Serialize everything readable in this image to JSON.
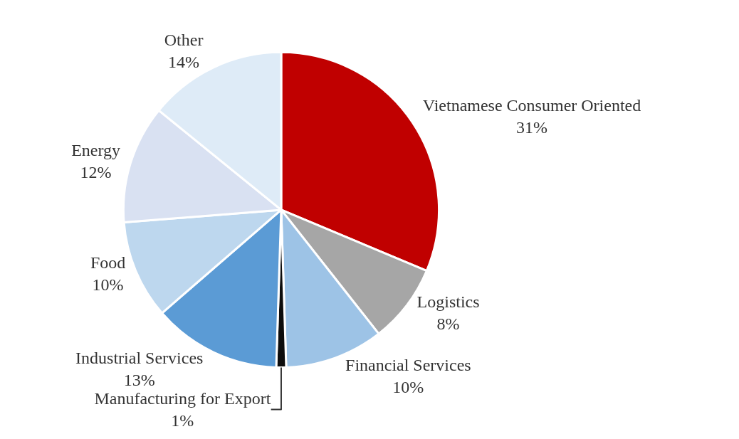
{
  "chart_data": {
    "type": "pie",
    "categories": [
      "Vietnamese Consumer Oriented",
      "Logistics",
      "Financial Services",
      "Manufacturing for Export",
      "Industrial Services",
      "Food",
      "Energy",
      "Other"
    ],
    "values": [
      31,
      8,
      10,
      1,
      13,
      10,
      12,
      14
    ],
    "value_labels": [
      "31%",
      "8%",
      "10%",
      "1%",
      "13%",
      "10%",
      "12%",
      "14%"
    ],
    "colors": [
      "#c00000",
      "#a6a6a6",
      "#9dc3e6",
      "#0d0d0d",
      "#5b9bd5",
      "#bdd7ee",
      "#d9e1f2",
      "#deebf7"
    ],
    "legend": false
  }
}
